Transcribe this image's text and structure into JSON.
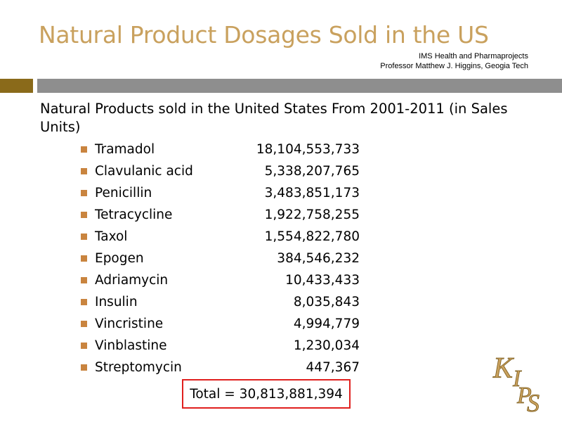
{
  "slide": {
    "title": "Natural Product Dosages Sold in the US",
    "source_line1": "IMS Health and Pharmaprojects",
    "source_line2": "Professor Matthew J. Higgins, Geogia Tech",
    "subtitle": "Natural Products sold in the United States From 2001-2011 (in Sales Units)",
    "items": [
      {
        "name": "Tramadol",
        "value": "18,104,553,733"
      },
      {
        "name": "Clavulanic acid",
        "value": "5,338,207,765"
      },
      {
        "name": "Penicillin",
        "value": "3,483,851,173"
      },
      {
        "name": "Tetracycline",
        "value": "1,922,758,255"
      },
      {
        "name": "Taxol",
        "value": "1,554,822,780"
      },
      {
        "name": "Epogen",
        "value": "384,546,232"
      },
      {
        "name": "Adriamycin",
        "value": "10,433,433"
      },
      {
        "name": "Insulin",
        "value": "8,035,843"
      },
      {
        "name": "Vincristine",
        "value": "4,994,779"
      },
      {
        "name": "Vinblastine",
        "value": "1,230,034"
      },
      {
        "name": "Streptomycin",
        "value": "447,367"
      }
    ],
    "total": "Total = 30,813,881,394",
    "logo_text": "KIPS"
  },
  "colors": {
    "title": "#c9a15e",
    "bullet": "#c9843f",
    "rule_gold": "#8a6a1a",
    "rule_gray": "#8e8e8e",
    "total_border": "#e0201e"
  }
}
